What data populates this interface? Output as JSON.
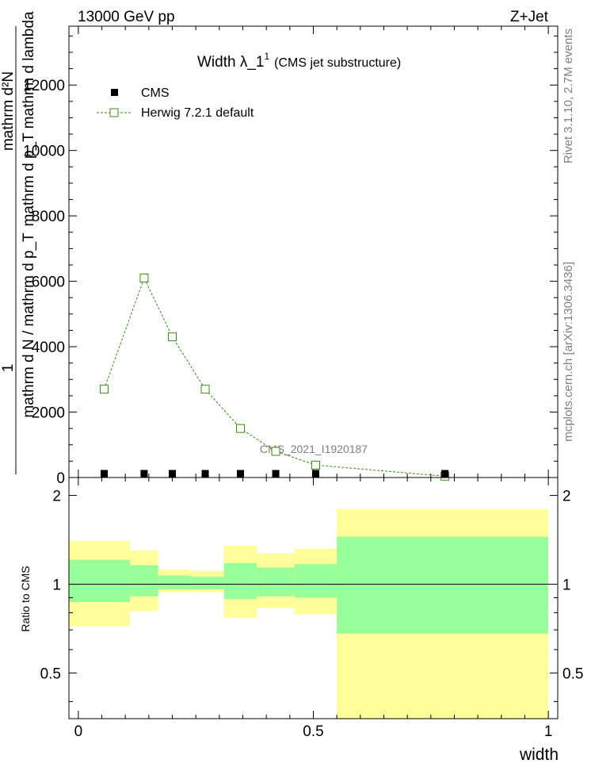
{
  "header": {
    "left": "13000 GeV pp",
    "right": "Z+Jet"
  },
  "side_labels": {
    "rivet": "Rivet 3.1.10,  2.7M events",
    "mcplots": "mcplots.cern.ch [arXiv:1306.3436]"
  },
  "chart_data": [
    {
      "type": "line",
      "title_main": "Width λ_1",
      "title_sup": "1",
      "title_sub": "(CMS jet substructure)",
      "watermark": "CMS_2021_I1920187",
      "ylabel_numerator": "mathrm d²N",
      "ylabel_denominator": "mathrm d p_T mathrm d lambda",
      "ylabel_extra_1": "1",
      "ylabel_extra_2": "mathrm d N / mathrm d p_T",
      "xlim": [
        -0.02,
        1.02
      ],
      "ylim": [
        0,
        13800
      ],
      "yticks": [
        0,
        2000,
        4000,
        6000,
        8000,
        10000,
        12000
      ],
      "ytick_labels": [
        "0",
        "2000",
        "4000",
        "6000",
        "8000",
        "10000",
        "12000"
      ],
      "legend": {
        "placement": "top-left",
        "entries": [
          {
            "label": "CMS",
            "color": "#000000",
            "marker": "filled-square"
          },
          {
            "label": "Herwig 7.2.1 default",
            "color": "#3a8a1a",
            "marker": "open-square",
            "line": "dashed"
          }
        ]
      },
      "series": [
        {
          "name": "CMS",
          "color": "#000000",
          "x": [
            0.055,
            0.14,
            0.2,
            0.27,
            0.345,
            0.42,
            0.505,
            0.78
          ],
          "y": [
            10,
            50,
            30,
            20,
            15,
            10,
            8,
            2
          ]
        },
        {
          "name": "Herwig 7.2.1 default",
          "color": "#3a8a1a",
          "x": [
            0.055,
            0.14,
            0.2,
            0.27,
            0.345,
            0.42,
            0.505,
            0.78
          ],
          "y": [
            2700,
            6100,
            4300,
            2700,
            1500,
            800,
            380,
            40
          ]
        }
      ]
    },
    {
      "type": "area",
      "ylabel": "Ratio to CMS",
      "xlabel": "width",
      "xlim": [
        -0.02,
        1.02
      ],
      "ylim": [
        0.35,
        2.3
      ],
      "yticks": [
        0.5,
        1,
        2
      ],
      "ytick_labels": [
        "0.5",
        "1",
        "2"
      ],
      "xticks": [
        0,
        0.5,
        1
      ],
      "xtick_labels": [
        "0",
        "0.5",
        "1"
      ],
      "band_colors": {
        "inner": "#99ff99",
        "outer": "#ffff99"
      },
      "bins": [
        {
          "x0": -0.02,
          "x1": 0.11,
          "outer": [
            0.72,
            1.4
          ],
          "inner": [
            0.87,
            1.21
          ]
        },
        {
          "x0": 0.11,
          "x1": 0.17,
          "outer": [
            0.81,
            1.3
          ],
          "inner": [
            0.91,
            1.16
          ]
        },
        {
          "x0": 0.17,
          "x1": 0.24,
          "outer": [
            0.94,
            1.12
          ],
          "inner": [
            0.96,
            1.07
          ]
        },
        {
          "x0": 0.24,
          "x1": 0.31,
          "outer": [
            0.94,
            1.11
          ],
          "inner": [
            0.96,
            1.06
          ]
        },
        {
          "x0": 0.31,
          "x1": 0.38,
          "outer": [
            0.77,
            1.35
          ],
          "inner": [
            0.89,
            1.18
          ]
        },
        {
          "x0": 0.38,
          "x1": 0.46,
          "outer": [
            0.83,
            1.27
          ],
          "inner": [
            0.91,
            1.14
          ]
        },
        {
          "x0": 0.46,
          "x1": 0.55,
          "outer": [
            0.79,
            1.32
          ],
          "inner": [
            0.9,
            1.17
          ]
        },
        {
          "x0": 0.55,
          "x1": 1.0,
          "outer": [
            0.35,
            1.8
          ],
          "inner": [
            0.68,
            1.45
          ]
        }
      ],
      "reference": 1
    }
  ]
}
